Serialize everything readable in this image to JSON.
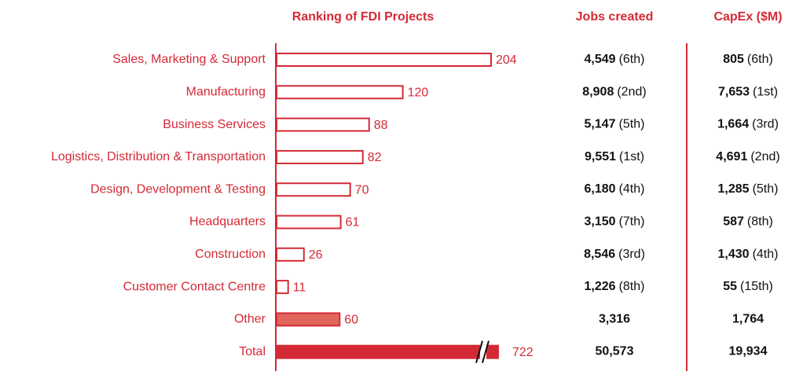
{
  "chart_data": {
    "type": "bar",
    "title": "Ranking of FDI Projects",
    "columns": [
      "Jobs created",
      "CapEx ($M)"
    ],
    "categories": [
      "Sales, Marketing & Support",
      "Manufacturing",
      "Business Services",
      "Logistics, Distribution & Transportation",
      "Design, Development & Testing",
      "Headquarters",
      "Construction",
      "Customer Contact Centre",
      "Other",
      "Total"
    ],
    "values": [
      204,
      120,
      88,
      82,
      70,
      61,
      26,
      11,
      60,
      722
    ],
    "fills": [
      "none",
      "none",
      "none",
      "none",
      "none",
      "none",
      "none",
      "none",
      "#e0665c",
      "#d42a36"
    ],
    "color": "#d42a36",
    "jobs": [
      {
        "value": "4,549",
        "rank": "(6th)"
      },
      {
        "value": "8,908",
        "rank": "(2nd)"
      },
      {
        "value": "5,147",
        "rank": "(5th)"
      },
      {
        "value": "9,551",
        "rank": "(1st)"
      },
      {
        "value": "6,180",
        "rank": "(4th)"
      },
      {
        "value": "3,150",
        "rank": "(7th)"
      },
      {
        "value": "8,546",
        "rank": "(3rd)"
      },
      {
        "value": "1,226",
        "rank": "(8th)"
      },
      {
        "value": "3,316"
      },
      {
        "value": "50,573"
      }
    ],
    "capex": [
      {
        "value": "805",
        "rank": "(6th)"
      },
      {
        "value": "7,653",
        "rank": "(1st)"
      },
      {
        "value": "1,664",
        "rank": "(3rd)"
      },
      {
        "value": "4,691",
        "rank": "(2nd)"
      },
      {
        "value": "1,285",
        "rank": "(5th)"
      },
      {
        "value": "587",
        "rank": "(8th)"
      },
      {
        "value": "1,430",
        "rank": "(4th)"
      },
      {
        "value": "55",
        "rank": "(15th)"
      },
      {
        "value": "1,764"
      },
      {
        "value": "19,934"
      }
    ]
  }
}
